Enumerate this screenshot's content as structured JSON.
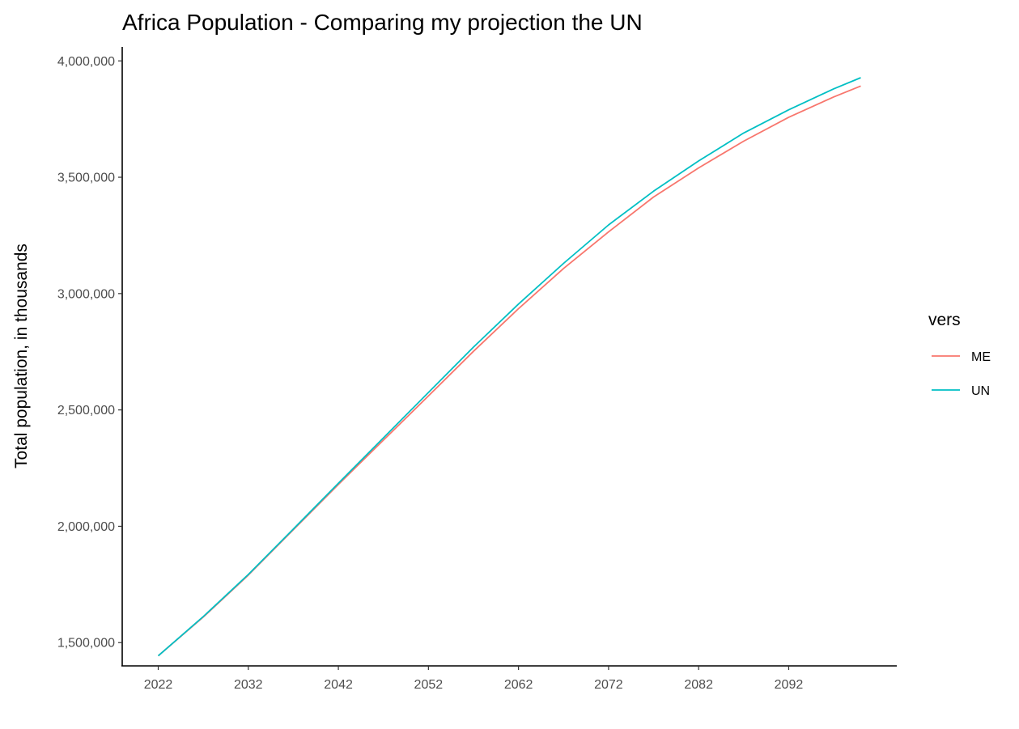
{
  "chart_data": {
    "type": "line",
    "title": "Africa Population - Comparing my projection the UN",
    "xlabel": "",
    "ylabel": "Total population, in thousands",
    "x": [
      2022,
      2027,
      2032,
      2037,
      2042,
      2047,
      2052,
      2057,
      2062,
      2067,
      2072,
      2077,
      2082,
      2087,
      2092,
      2097,
      2100
    ],
    "xlim": [
      2018,
      2104
    ],
    "ylim": [
      1400000,
      4060000
    ],
    "x_ticks": [
      2022,
      2032,
      2042,
      2052,
      2062,
      2072,
      2082,
      2092
    ],
    "x_tick_labels": [
      "2022",
      "2032",
      "2042",
      "2052",
      "2062",
      "2072",
      "2082",
      "2092"
    ],
    "y_ticks": [
      1500000,
      2000000,
      2500000,
      3000000,
      3500000,
      4000000
    ],
    "y_tick_labels": [
      "1,500,000",
      "2,000,000",
      "2,500,000",
      "3,000,000",
      "3,500,000",
      "4,000,000"
    ],
    "grid": false,
    "legend_position": "right",
    "legend_title": "vers",
    "series": [
      {
        "name": "ME",
        "color": "#F8766D",
        "values": [
          1443000,
          1610000,
          1790000,
          1985000,
          2180000,
          2370000,
          2560000,
          2752000,
          2935000,
          3108000,
          3265000,
          3415000,
          3540000,
          3655000,
          3758000,
          3845000,
          3892000
        ]
      },
      {
        "name": "UN",
        "color": "#00BFC4",
        "values": [
          1443000,
          1612000,
          1793000,
          1988000,
          2185000,
          2380000,
          2575000,
          2770000,
          2955000,
          3130000,
          3295000,
          3440000,
          3570000,
          3690000,
          3790000,
          3880000,
          3928000
        ]
      }
    ]
  }
}
